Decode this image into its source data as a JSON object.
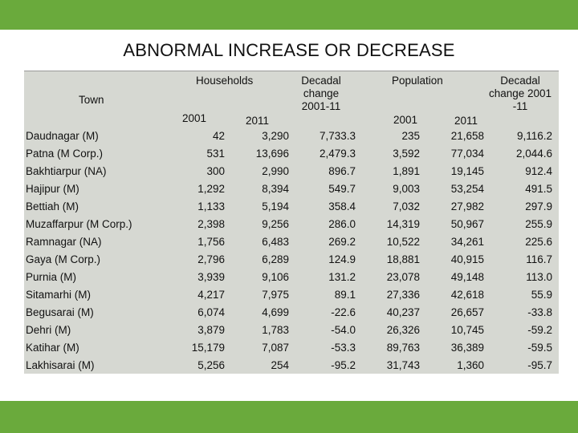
{
  "title": "ABNORMAL INCREASE OR DECREASE",
  "headers": {
    "town": "Town",
    "households": "Households",
    "hh_2001": "2001",
    "hh_2011": "2011",
    "hh_change": [
      "Decadal",
      "change",
      "2001-11"
    ],
    "population": "Population",
    "pop_2001": "2001",
    "pop_2011": "2011",
    "pop_change": [
      "Decadal",
      "change 2001",
      "-11"
    ]
  },
  "rows": [
    {
      "town": "Daudnagar (M)",
      "hh2001": "42",
      "hh2011": "3,290",
      "hhch": "7,733.3",
      "pop2001": "235",
      "pop2011": "21,658",
      "popch": "9,116.2"
    },
    {
      "town": "Patna (M Corp.)",
      "hh2001": "531",
      "hh2011": "13,696",
      "hhch": "2,479.3",
      "pop2001": "3,592",
      "pop2011": "77,034",
      "popch": "2,044.6"
    },
    {
      "town": "Bakhtiarpur (NA)",
      "hh2001": "300",
      "hh2011": "2,990",
      "hhch": "896.7",
      "pop2001": "1,891",
      "pop2011": "19,145",
      "popch": "912.4"
    },
    {
      "town": "Hajipur (M)",
      "hh2001": "1,292",
      "hh2011": "8,394",
      "hhch": "549.7",
      "pop2001": "9,003",
      "pop2011": "53,254",
      "popch": "491.5"
    },
    {
      "town": "Bettiah (M)",
      "hh2001": "1,133",
      "hh2011": "5,194",
      "hhch": "358.4",
      "pop2001": "7,032",
      "pop2011": "27,982",
      "popch": "297.9"
    },
    {
      "town": "Muzaffarpur (M Corp.)",
      "hh2001": "2,398",
      "hh2011": "9,256",
      "hhch": "286.0",
      "pop2001": "14,319",
      "pop2011": "50,967",
      "popch": "255.9"
    },
    {
      "town": "Ramnagar (NA)",
      "hh2001": "1,756",
      "hh2011": "6,483",
      "hhch": "269.2",
      "pop2001": "10,522",
      "pop2011": "34,261",
      "popch": "225.6"
    },
    {
      "town": "Gaya (M Corp.)",
      "hh2001": "2,796",
      "hh2011": "6,289",
      "hhch": "124.9",
      "pop2001": "18,881",
      "pop2011": "40,915",
      "popch": "116.7"
    },
    {
      "town": "Purnia (M)",
      "hh2001": "3,939",
      "hh2011": "9,106",
      "hhch": "131.2",
      "pop2001": "23,078",
      "pop2011": "49,148",
      "popch": "113.0"
    },
    {
      "town": "Sitamarhi (M)",
      "hh2001": "4,217",
      "hh2011": "7,975",
      "hhch": "89.1",
      "pop2001": "27,336",
      "pop2011": "42,618",
      "popch": "55.9"
    },
    {
      "town": "Begusarai (M)",
      "hh2001": "6,074",
      "hh2011": "4,699",
      "hhch": "-22.6",
      "pop2001": "40,237",
      "pop2011": "26,657",
      "popch": "-33.8"
    },
    {
      "town": "Dehri (M)",
      "hh2001": "3,879",
      "hh2011": "1,783",
      "hhch": "-54.0",
      "pop2001": "26,326",
      "pop2011": "10,745",
      "popch": "-59.2"
    },
    {
      "town": "Katihar (M)",
      "hh2001": "15,179",
      "hh2011": "7,087",
      "hhch": "-53.3",
      "pop2001": "89,763",
      "pop2011": "36,389",
      "popch": "-59.5"
    },
    {
      "town": "Lakhisarai (M)",
      "hh2001": "5,256",
      "hh2011": "254",
      "hhch": "-95.2",
      "pop2001": "31,743",
      "pop2011": "1,360",
      "popch": "-95.7"
    }
  ]
}
